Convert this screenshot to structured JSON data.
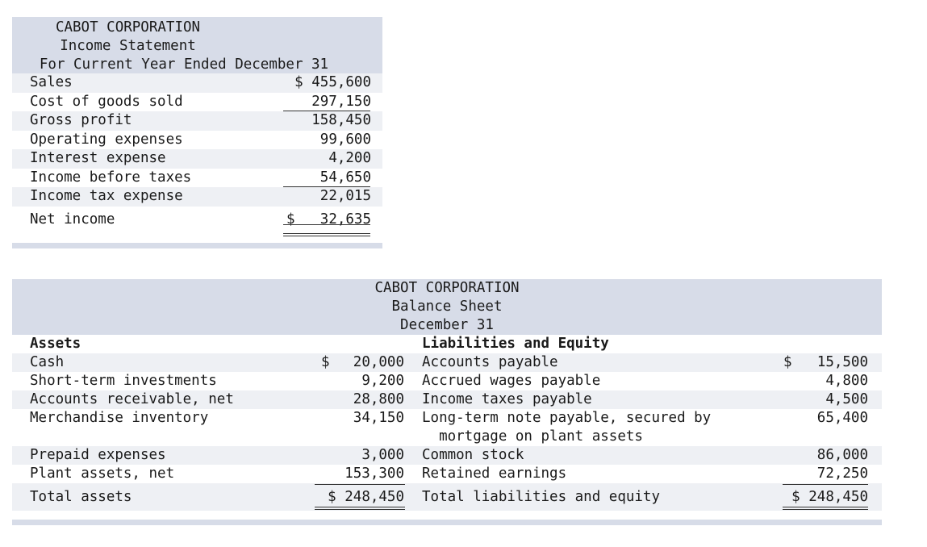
{
  "income_statement": {
    "company": "CABOT CORPORATION",
    "title": "Income Statement",
    "period": "For Current Year Ended December 31",
    "rows": [
      {
        "label": "Sales",
        "amount": "$ 455,600"
      },
      {
        "label": "Cost of goods sold",
        "amount": "297,150"
      },
      {
        "label": "Gross profit",
        "amount": "158,450"
      },
      {
        "label": "Operating expenses",
        "amount": "99,600"
      },
      {
        "label": "Interest expense",
        "amount": "4,200"
      },
      {
        "label": "Income before taxes",
        "amount": "54,650"
      },
      {
        "label": "Income tax expense",
        "amount": "22,015"
      }
    ],
    "net_income": {
      "label": "Net income",
      "dollar": "$",
      "amount": "32,635"
    }
  },
  "balance_sheet": {
    "company": "CABOT CORPORATION",
    "title": "Balance Sheet",
    "date": "December 31",
    "assets_heading": "Assets",
    "liabilities_heading": "Liabilities and Equity",
    "rows": [
      {
        "asset": "Cash",
        "asset_dollar": "$",
        "asset_amount": "20,000",
        "liability": "Accounts payable",
        "liability_dollar": "$",
        "liability_amount": "15,500"
      },
      {
        "asset": "Short-term investments",
        "asset_dollar": "",
        "asset_amount": "9,200",
        "liability": "Accrued wages payable",
        "liability_dollar": "",
        "liability_amount": "4,800"
      },
      {
        "asset": "Accounts receivable, net",
        "asset_dollar": "",
        "asset_amount": "28,800",
        "liability": "Income taxes payable",
        "liability_dollar": "",
        "liability_amount": "4,500"
      },
      {
        "asset": "Merchandise inventory",
        "asset_dollar": "",
        "asset_amount": "34,150",
        "liability": "Long-term note payable, secured by",
        "liability_dollar": "",
        "liability_amount": "65,400"
      },
      {
        "asset": "",
        "asset_dollar": "",
        "asset_amount": "",
        "liability": "  mortgage on plant assets",
        "liability_dollar": "",
        "liability_amount": ""
      },
      {
        "asset": "Prepaid expenses",
        "asset_dollar": "",
        "asset_amount": "3,000",
        "liability": "Common stock",
        "liability_dollar": "",
        "liability_amount": "86,000"
      },
      {
        "asset": "Plant assets, net",
        "asset_dollar": "",
        "asset_amount": "153,300",
        "liability": "Retained earnings",
        "liability_dollar": "",
        "liability_amount": "72,250"
      }
    ],
    "total": {
      "asset": "Total assets",
      "asset_amount": "$ 248,450",
      "liability": "Total liabilities and equity",
      "liability_amount": "$ 248,450"
    }
  },
  "colors": {
    "header_bg": "#d7dce8",
    "row_shade": "#eef0f4"
  }
}
